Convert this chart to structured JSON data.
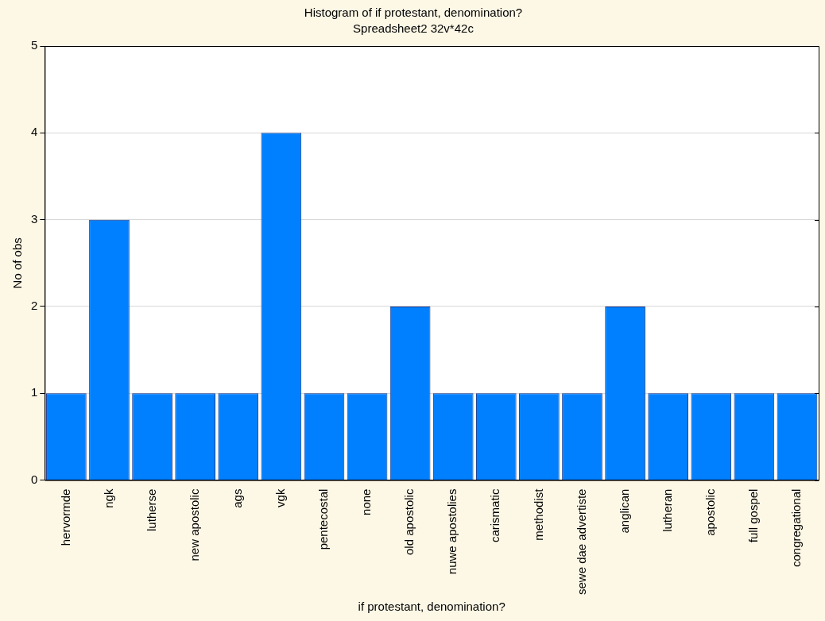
{
  "chart_data": {
    "type": "bar",
    "title": "Histogram of if protestant, denomination?",
    "subtitle": "Spreadsheet2 32v*42c",
    "xlabel": "if protestant, denomination?",
    "ylabel": "No of obs",
    "categories": [
      "hervormde",
      "ngk",
      "lutherse",
      "new apostolic",
      "ags",
      "vgk",
      "pentecostal",
      "none",
      "old apostolic",
      "nuwe apostolies",
      "carismatic",
      "methodist",
      "sewe dae advertiste",
      "anglican",
      "lutheran",
      "apostolic",
      "full gospel",
      "congregational"
    ],
    "values": [
      1,
      3,
      1,
      1,
      1,
      4,
      1,
      1,
      2,
      1,
      1,
      1,
      1,
      2,
      1,
      1,
      1,
      1
    ],
    "color": "#0080ff",
    "ylim": [
      0,
      5
    ],
    "yticks": [
      0,
      1,
      2,
      3,
      4,
      5
    ],
    "grid": "y",
    "legend": false
  }
}
